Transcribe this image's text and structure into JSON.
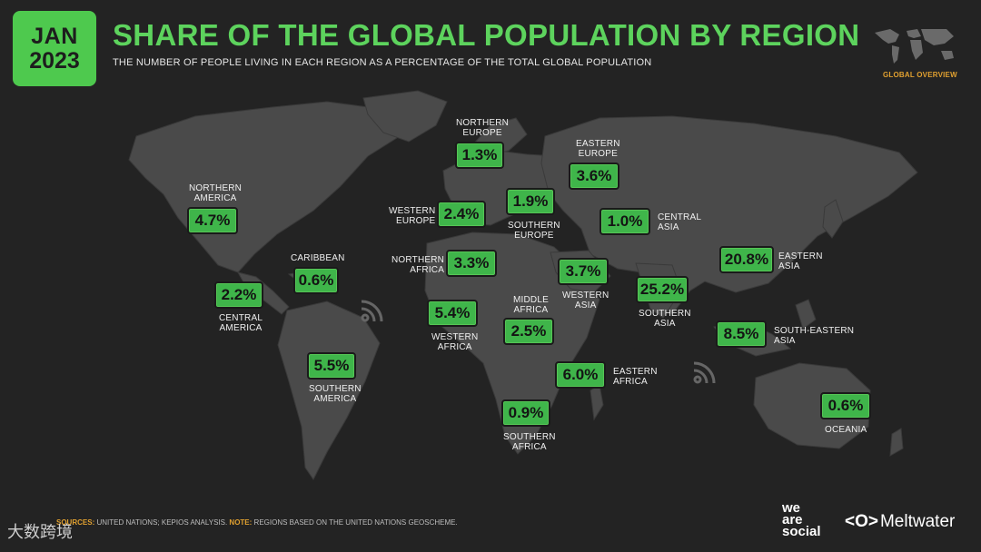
{
  "header": {
    "badge_month": "JAN",
    "badge_year": "2023",
    "title": "SHARE OF THE GLOBAL POPULATION BY REGION",
    "subtitle": "THE NUMBER OF PEOPLE LIVING IN EACH REGION AS A PERCENTAGE OF THE TOTAL GLOBAL POPULATION",
    "section_label": "GLOBAL OVERVIEW"
  },
  "regions": [
    {
      "name": "NORTHERN\nAMERICA",
      "value": "4.7%"
    },
    {
      "name": "CARIBBEAN",
      "value": "0.6%"
    },
    {
      "name": "CENTRAL\nAMERICA",
      "value": "2.2%"
    },
    {
      "name": "SOUTHERN\nAMERICA",
      "value": "5.5%"
    },
    {
      "name": "NORTHERN\nEUROPE",
      "value": "1.3%"
    },
    {
      "name": "WESTERN\nEUROPE",
      "value": "2.4%"
    },
    {
      "name": "SOUTHERN\nEUROPE",
      "value": "1.9%"
    },
    {
      "name": "EASTERN\nEUROPE",
      "value": "3.6%"
    },
    {
      "name": "NORTHERN\nAFRICA",
      "value": "3.3%"
    },
    {
      "name": "WESTERN\nAFRICA",
      "value": "5.4%"
    },
    {
      "name": "MIDDLE\nAFRICA",
      "value": "2.5%"
    },
    {
      "name": "EASTERN\nAFRICA",
      "value": "6.0%"
    },
    {
      "name": "SOUTHERN\nAFRICA",
      "value": "0.9%"
    },
    {
      "name": "WESTERN\nASIA",
      "value": "3.7%"
    },
    {
      "name": "CENTRAL\nASIA",
      "value": "1.0%"
    },
    {
      "name": "SOUTHERN\nASIA",
      "value": "25.2%"
    },
    {
      "name": "EASTERN\nASIA",
      "value": "20.8%"
    },
    {
      "name": "SOUTH-EASTERN\nASIA",
      "value": "8.5%"
    },
    {
      "name": "OCEANIA",
      "value": "0.6%"
    }
  ],
  "footer": {
    "sources_label": "SOURCES:",
    "sources_text": " UNITED NATIONS; KEPIOS ANALYSIS. ",
    "note_label": "NOTE:",
    "note_text": " REGIONS BASED ON THE UNITED NATIONS GEOSCHEME.",
    "brand1": "we\nare\nsocial",
    "brand2_logo": "<O>",
    "brand2_name": "Meltwater",
    "watermark": "大数跨境"
  },
  "colors": {
    "accent": "#5dd35d",
    "box": "#3fb54a",
    "highlight": "#e0a030",
    "background": "#232323",
    "land": "#4a4a4a"
  }
}
